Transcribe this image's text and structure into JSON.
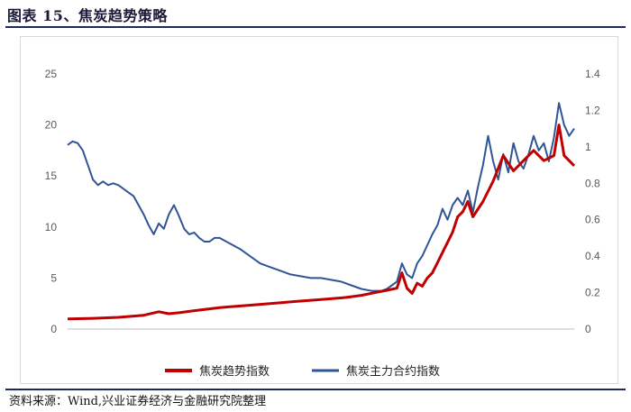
{
  "figure": {
    "title": "图表 15、焦炭趋势策略",
    "source": "资料来源：Wind,兴业证券经济与金融研究院整理"
  },
  "colors": {
    "trend": "#c00000",
    "futures": "#2f5597",
    "rule": "#1f2a5c"
  },
  "chart_data": {
    "type": "line",
    "title": "",
    "xlabel": "",
    "ylabel_left": "",
    "ylabel_right": "",
    "grid": false,
    "legend_position": "bottom",
    "x_range": [
      0,
      100
    ],
    "x_note": "no x-axis tick labels shown",
    "y_left": {
      "range": [
        0,
        25
      ],
      "ticks": [
        "0",
        "5",
        "10",
        "15",
        "20",
        "25"
      ]
    },
    "y_right": {
      "range": [
        0,
        1.4
      ],
      "ticks": [
        "0",
        "0.2",
        "0.4",
        "0.6",
        "0.8",
        "1",
        "1.2",
        "1.4"
      ]
    },
    "series": [
      {
        "name": "焦炭趋势指数",
        "axis": "left",
        "color": "#c00000",
        "x": [
          0,
          5,
          10,
          15,
          18,
          20,
          22,
          25,
          30,
          35,
          40,
          45,
          50,
          55,
          58,
          61,
          63,
          65,
          66,
          67,
          68,
          69,
          70,
          71,
          72,
          73,
          74,
          75,
          76,
          77,
          78,
          79,
          80,
          82,
          84,
          86,
          88,
          90,
          92,
          94,
          96,
          97,
          98,
          99,
          100
        ],
        "values": [
          1.0,
          1.05,
          1.15,
          1.35,
          1.7,
          1.5,
          1.6,
          1.8,
          2.1,
          2.3,
          2.5,
          2.7,
          2.9,
          3.1,
          3.3,
          3.6,
          3.8,
          4.0,
          5.5,
          4.0,
          3.5,
          4.5,
          4.2,
          5.0,
          5.5,
          6.5,
          7.5,
          8.5,
          9.5,
          11.0,
          11.5,
          12.5,
          11.0,
          12.5,
          14.5,
          17.0,
          15.5,
          16.5,
          17.5,
          16.5,
          17.0,
          20.0,
          17.0,
          16.5,
          16.0
        ]
      },
      {
        "name": "焦炭主力合约指数",
        "axis": "right",
        "color": "#2f5597",
        "x": [
          0,
          1,
          2,
          3,
          4,
          5,
          6,
          7,
          8,
          9,
          10,
          11,
          12,
          13,
          14,
          15,
          16,
          17,
          18,
          19,
          20,
          21,
          22,
          23,
          24,
          25,
          26,
          27,
          28,
          29,
          30,
          32,
          34,
          36,
          38,
          40,
          42,
          44,
          46,
          48,
          50,
          52,
          54,
          56,
          58,
          60,
          62,
          63,
          64,
          65,
          66,
          67,
          68,
          69,
          70,
          71,
          72,
          73,
          74,
          75,
          76,
          77,
          78,
          79,
          80,
          81,
          82,
          83,
          84,
          85,
          86,
          87,
          88,
          89,
          90,
          91,
          92,
          93,
          94,
          95,
          96,
          97,
          98,
          99,
          100
        ],
        "values": [
          1.01,
          1.03,
          1.02,
          0.98,
          0.9,
          0.82,
          0.79,
          0.81,
          0.79,
          0.8,
          0.79,
          0.77,
          0.75,
          0.73,
          0.68,
          0.63,
          0.57,
          0.52,
          0.58,
          0.55,
          0.63,
          0.68,
          0.62,
          0.55,
          0.52,
          0.53,
          0.5,
          0.48,
          0.48,
          0.5,
          0.5,
          0.47,
          0.44,
          0.4,
          0.36,
          0.34,
          0.32,
          0.3,
          0.29,
          0.28,
          0.28,
          0.27,
          0.26,
          0.24,
          0.22,
          0.21,
          0.21,
          0.22,
          0.24,
          0.26,
          0.36,
          0.3,
          0.28,
          0.36,
          0.4,
          0.46,
          0.52,
          0.57,
          0.66,
          0.6,
          0.68,
          0.72,
          0.68,
          0.76,
          0.64,
          0.78,
          0.9,
          1.06,
          0.92,
          0.82,
          0.96,
          0.86,
          1.02,
          0.92,
          0.88,
          0.96,
          1.06,
          0.98,
          1.02,
          0.92,
          1.05,
          1.24,
          1.12,
          1.06,
          1.1
        ]
      }
    ]
  }
}
